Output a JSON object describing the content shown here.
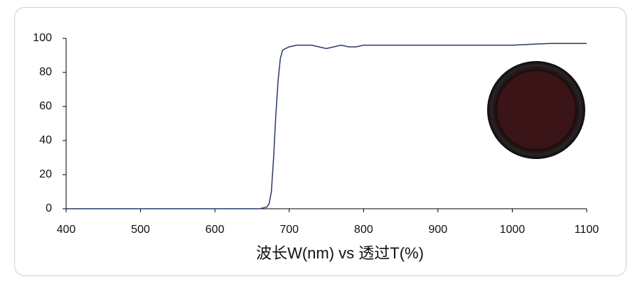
{
  "chart_data": {
    "type": "line",
    "x_label": "波长W(nm) vs 透过T(%)",
    "x": [
      400,
      500,
      600,
      650,
      660,
      665,
      670,
      673,
      676,
      679,
      682,
      685,
      688,
      691,
      695,
      700,
      710,
      730,
      740,
      750,
      760,
      770,
      780,
      790,
      800,
      820,
      850,
      900,
      950,
      1000,
      1050,
      1080,
      1100
    ],
    "values": [
      0,
      0,
      0,
      0,
      0,
      0.5,
      1,
      3,
      10,
      30,
      55,
      75,
      88,
      93,
      94,
      95,
      96,
      96,
      95,
      94,
      95,
      96,
      95,
      95,
      96,
      96,
      96,
      96,
      96,
      96,
      97,
      97,
      97
    ],
    "color": "#2b3a6b",
    "xlim": [
      400,
      1100
    ],
    "xticks": [
      400,
      500,
      600,
      700,
      800,
      900,
      1000,
      1100
    ],
    "ylim": [
      0,
      100
    ],
    "yticks": [
      0,
      20,
      40,
      60,
      80,
      100
    ],
    "grid": false
  }
}
